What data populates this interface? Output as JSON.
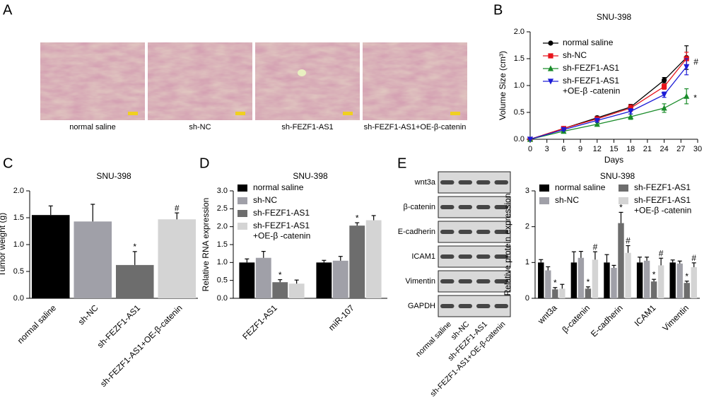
{
  "panel_labels": [
    "A",
    "B",
    "C",
    "D",
    "E"
  ],
  "histology": {
    "labels": [
      "normal saline",
      "sh-NC",
      "sh-FEZF1-AS1",
      "sh-FEZF1-AS1+OE-β-catenin"
    ]
  },
  "western_blot": {
    "proteins": [
      "wnt3a",
      "β-catenin",
      "E-cadherin",
      "ICAM1",
      "Vimentin",
      "GAPDH"
    ],
    "lanes": [
      "normal saline",
      "sh-NC",
      "sh-FEZF1-AS1",
      "sh-FEZF1-AS1+OE-β-catenin"
    ]
  },
  "chart_data": [
    {
      "type": "line",
      "title": "SNU-398",
      "x_label": "Days",
      "y_label": "Volume Size (cm³)",
      "x": [
        0,
        6,
        12,
        18,
        24,
        28
      ],
      "xlim": [
        0,
        30
      ],
      "xticks": [
        0,
        3,
        6,
        9,
        12,
        15,
        18,
        21,
        24,
        27,
        30
      ],
      "ylim": [
        0,
        2
      ],
      "yticks": [
        {
          "value": 0,
          "label": "0.0"
        },
        0.5,
        {
          "value": 1,
          "label": "1.0"
        },
        1.5,
        {
          "value": 2,
          "label": "2.0"
        }
      ],
      "legend": "upper left",
      "series": [
        {
          "name": "normal saline",
          "color": "#000000",
          "marker": "circle",
          "values": [
            0,
            0.2,
            0.4,
            0.6,
            1.1,
            1.52
          ],
          "errors": [
            0,
            0.02,
            0.03,
            0.05,
            0.05,
            0.22
          ],
          "annotations": [
            null,
            null,
            null,
            null,
            null,
            null
          ]
        },
        {
          "name": "sh-NC",
          "color": "#e8141c",
          "marker": "square",
          "values": [
            0,
            0.2,
            0.38,
            0.58,
            0.98,
            1.5
          ],
          "errors": [
            0,
            0.02,
            0.03,
            0.06,
            0.05,
            0.12
          ],
          "annotations": [
            null,
            null,
            null,
            null,
            null,
            null
          ]
        },
        {
          "name": "sh-FEZF1-AS1",
          "color": "#1a8c2a",
          "marker": "triangle-up",
          "values": [
            0,
            0.15,
            0.28,
            0.42,
            0.58,
            0.8
          ],
          "errors": [
            0,
            0.02,
            0.03,
            0.05,
            0.08,
            0.14
          ],
          "annotations": [
            null,
            null,
            null,
            null,
            null,
            "*"
          ]
        },
        {
          "name": "sh-FEZF1-AS1\n+OE-β -catenin",
          "color": "#1c1cd6",
          "marker": "triangle-down",
          "values": [
            0,
            0.18,
            0.35,
            0.52,
            0.83,
            1.35
          ],
          "errors": [
            0,
            0.02,
            0.03,
            0.05,
            0.05,
            0.15
          ],
          "annotations": [
            null,
            null,
            null,
            null,
            null,
            "#"
          ]
        }
      ]
    },
    {
      "type": "bar",
      "title": "SNU-398",
      "y_label": "Tumor weight (g)",
      "categories": [
        "normal saline",
        "sh-NC",
        "sh-FEZF1-AS1",
        "sh-FEZF1-AS1+OE-β-catenin"
      ],
      "values": [
        1.55,
        1.43,
        0.62,
        1.47
      ],
      "errors": [
        0.17,
        0.32,
        0.25,
        0.12
      ],
      "annotations": [
        null,
        null,
        "*",
        "#"
      ],
      "colors": [
        "#000000",
        "#a0a0a8",
        "#6d6d6d",
        "#d4d4d4"
      ],
      "ylim": [
        0,
        2
      ],
      "yticks": [
        {
          "value": 0,
          "label": "0.0"
        },
        0.5,
        {
          "value": 1,
          "label": "1.0"
        },
        1.5,
        {
          "value": 2,
          "label": "2.0"
        }
      ]
    },
    {
      "type": "grouped_bar",
      "title": "SNU-398",
      "y_label": "Relative  RNA expression",
      "categories": [
        "FEZF1-AS1",
        "miR-107"
      ],
      "ylim": [
        0,
        3
      ],
      "yticks": [
        {
          "value": 0,
          "label": "0.0"
        },
        0.5,
        {
          "value": 1,
          "label": "1.0"
        },
        1.5,
        {
          "value": 2,
          "label": "2.0"
        },
        2.5,
        {
          "value": 3,
          "label": "3.0"
        }
      ],
      "legend": "upper left",
      "series": [
        {
          "name": "normal saline",
          "color": "#000000",
          "values": [
            1.0,
            1.0
          ],
          "errors": [
            0.1,
            0.06
          ],
          "annotations": [
            null,
            null
          ]
        },
        {
          "name": "sh-NC",
          "color": "#a0a0a8",
          "values": [
            1.13,
            1.05
          ],
          "errors": [
            0.18,
            0.12
          ],
          "annotations": [
            null,
            null
          ]
        },
        {
          "name": "sh-FEZF1-AS1",
          "color": "#6d6d6d",
          "values": [
            0.45,
            2.03
          ],
          "errors": [
            0.07,
            0.08
          ],
          "annotations": [
            "*",
            "*"
          ]
        },
        {
          "name": "sh-FEZF1-AS1\n+OE-β -catenin",
          "color": "#d4d4d4",
          "values": [
            0.41,
            2.18
          ],
          "errors": [
            0.1,
            0.13
          ],
          "annotations": [
            null,
            null
          ]
        }
      ]
    },
    {
      "type": "grouped_bar",
      "title": "SNU-398",
      "y_label": "Relative protein expression",
      "categories": [
        "wnt3a",
        "β-catenin",
        "E-cadherin",
        "ICAM1",
        "Vimentin"
      ],
      "ylim": [
        0,
        3
      ],
      "yticks": [
        0,
        1,
        2,
        3
      ],
      "legend": "upper center",
      "legend_columns": 2,
      "series": [
        {
          "name": "normal saline",
          "color": "#000000",
          "values": [
            1.0,
            1.0,
            1.0,
            1.0,
            1.0
          ],
          "errors": [
            0.08,
            0.3,
            0.22,
            0.15,
            0.07
          ],
          "annotations": [
            null,
            null,
            null,
            null,
            null
          ]
        },
        {
          "name": "sh-NC",
          "color": "#a0a0a8",
          "values": [
            0.78,
            1.13,
            0.85,
            1.05,
            0.97
          ],
          "errors": [
            0.1,
            0.18,
            0.07,
            0.1,
            0.07
          ],
          "annotations": [
            null,
            null,
            null,
            null,
            null
          ]
        },
        {
          "name": "sh-FEZF1-AS1",
          "color": "#6d6d6d",
          "values": [
            0.25,
            0.27,
            2.1,
            0.47,
            0.43
          ],
          "errors": [
            0.05,
            0.05,
            0.3,
            0.06,
            0.05
          ],
          "annotations": [
            "*",
            "*",
            "*",
            "*",
            "*"
          ]
        },
        {
          "name": "sh-FEZF1-AS1\n+OE-β -catenin",
          "color": "#d4d4d4",
          "values": [
            0.27,
            1.08,
            1.27,
            0.92,
            0.87
          ],
          "errors": [
            0.12,
            0.22,
            0.2,
            0.2,
            0.12
          ],
          "annotations": [
            null,
            "#",
            "#",
            "#",
            "#"
          ]
        }
      ]
    }
  ]
}
